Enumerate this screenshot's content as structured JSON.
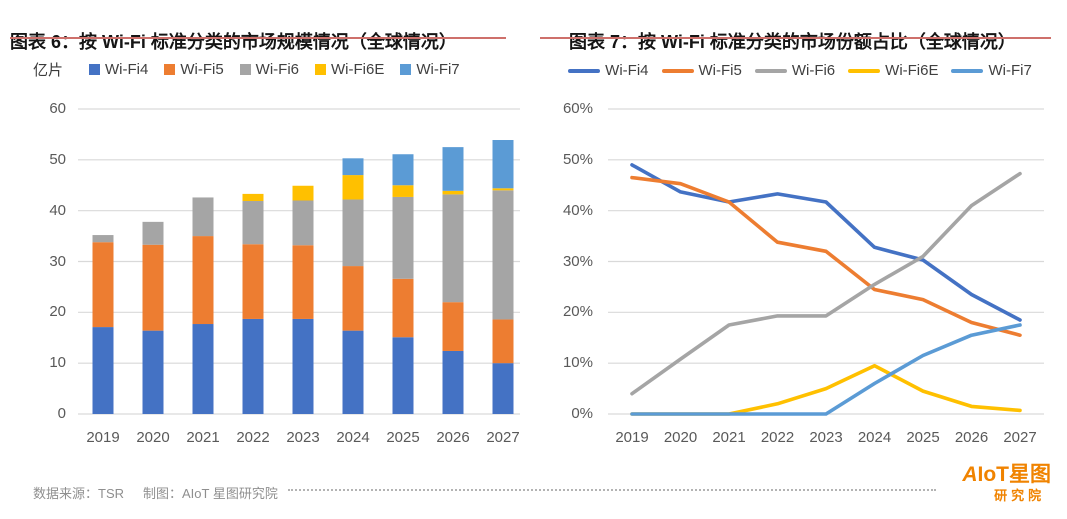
{
  "chart_data": [
    {
      "type": "bar",
      "stacked": true,
      "title": "图表 6：按 Wi-Fi 标准分类的市场规模情况（全球情况）",
      "unit": "亿片",
      "categories": [
        "2019",
        "2020",
        "2021",
        "2022",
        "2023",
        "2024",
        "2025",
        "2026",
        "2027"
      ],
      "series": [
        {
          "name": "Wi-Fi4",
          "color": "#4472C4",
          "values": [
            17.1,
            16.4,
            17.7,
            18.7,
            18.7,
            16.4,
            15.1,
            12.4,
            10.0
          ]
        },
        {
          "name": "Wi-Fi5",
          "color": "#ED7D31",
          "values": [
            16.7,
            16.9,
            17.3,
            14.7,
            14.5,
            12.7,
            11.5,
            9.6,
            8.6
          ]
        },
        {
          "name": "Wi-Fi6",
          "color": "#A5A5A5",
          "values": [
            1.4,
            4.5,
            7.6,
            8.5,
            8.8,
            13.1,
            16.1,
            21.2,
            25.4
          ]
        },
        {
          "name": "Wi-Fi6E",
          "color": "#FFC000",
          "values": [
            0,
            0,
            0,
            1.4,
            2.9,
            4.8,
            2.3,
            0.7,
            0.4
          ]
        },
        {
          "name": "Wi-Fi7",
          "color": "#5B9BD5",
          "values": [
            0,
            0,
            0,
            0,
            0,
            3.3,
            6.1,
            8.6,
            9.5
          ]
        }
      ],
      "ylim": [
        0,
        60
      ],
      "ytick_step": 10,
      "ytick_labels": [
        "0",
        "10",
        "20",
        "30",
        "40",
        "50",
        "60"
      ],
      "grid": true,
      "legend_position": "top"
    },
    {
      "type": "line",
      "title": "图表 7：按 Wi-Fi 标准分类的市场份额占比（全球情况）",
      "categories": [
        "2019",
        "2020",
        "2021",
        "2022",
        "2023",
        "2024",
        "2025",
        "2026",
        "2027"
      ],
      "series": [
        {
          "name": "Wi-Fi4",
          "color": "#4472C4",
          "values": [
            49,
            43.7,
            41.7,
            43.3,
            41.7,
            32.8,
            30.3,
            23.5,
            18.5
          ]
        },
        {
          "name": "Wi-Fi5",
          "color": "#ED7D31",
          "values": [
            46.5,
            45.3,
            41.7,
            33.8,
            32,
            24.5,
            22.5,
            18,
            15.5
          ]
        },
        {
          "name": "Wi-Fi6",
          "color": "#A5A5A5",
          "values": [
            4,
            10.8,
            17.5,
            19.3,
            19.3,
            25.5,
            31,
            41,
            47.3
          ]
        },
        {
          "name": "Wi-Fi6E",
          "color": "#FFC000",
          "values": [
            0,
            0,
            0,
            2,
            5,
            9.5,
            4.5,
            1.5,
            0.7
          ]
        },
        {
          "name": "Wi-Fi7",
          "color": "#5B9BD5",
          "values": [
            0,
            0,
            0,
            0,
            0,
            6,
            11.5,
            15.5,
            17.5
          ]
        }
      ],
      "ylim": [
        0,
        60
      ],
      "ytick_step": 10,
      "ytick_labels": [
        "0%",
        "10%",
        "20%",
        "30%",
        "40%",
        "50%",
        "60%"
      ],
      "grid": true,
      "legend_position": "top"
    }
  ],
  "footer": {
    "source": "数据来源：TSR",
    "credit": "制图：AIoT 星图研究院"
  },
  "logo": {
    "text_top": "AIoT星图",
    "text_bottom": "研究院",
    "color": "#F08300"
  },
  "colors": {
    "title_underline": "#CE706B",
    "axis_text": "#595959",
    "gridline": "#D9D9D9"
  }
}
